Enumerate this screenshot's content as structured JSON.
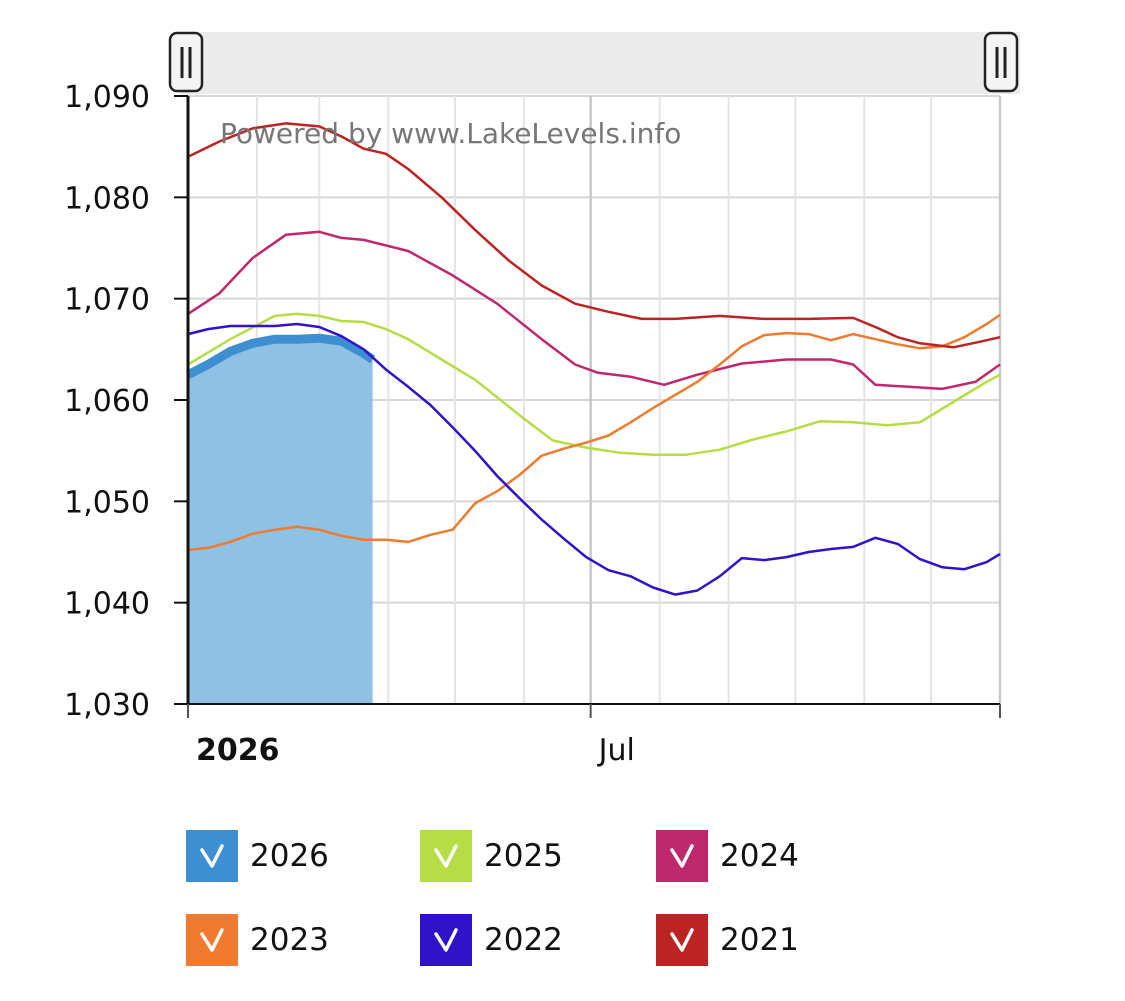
{
  "watermark": "Powered by www.LakeLevels.info",
  "chart_data": {
    "type": "line",
    "y_ticks": [
      "1,030",
      "1,040",
      "1,050",
      "1,060",
      "1,070",
      "1,080",
      "1,090"
    ],
    "ylim": [
      1030,
      1090
    ],
    "x_ticks": [
      {
        "label": "2026",
        "bold": true,
        "x": 1
      },
      {
        "label": "Jul",
        "bold": false,
        "x": 182
      }
    ],
    "xlim": [
      1,
      366
    ],
    "grid": true,
    "legend_position": "bottom",
    "series": [
      {
        "name": "2026",
        "color": "#3d8fd1",
        "style": "area",
        "x": [
          1,
          10,
          20,
          30,
          40,
          50,
          60,
          70,
          75,
          80,
          84
        ],
        "y": [
          1062.5,
          1063.5,
          1064.8,
          1065.6,
          1066,
          1066,
          1066.1,
          1065.8,
          1065.2,
          1064.6,
          1064
        ]
      },
      {
        "name": "2025",
        "color": "#b5dd45",
        "style": "line",
        "x": [
          1,
          20,
          40,
          50,
          60,
          70,
          80,
          90,
          100,
          115,
          130,
          150,
          165,
          180,
          195,
          210,
          225,
          240,
          255,
          270,
          285,
          300,
          315,
          330,
          345,
          360,
          366
        ],
        "y": [
          1063.5,
          1066,
          1068.3,
          1068.5,
          1068.3,
          1067.8,
          1067.7,
          1067,
          1066,
          1064,
          1062,
          1058.5,
          1056,
          1055.3,
          1054.8,
          1054.6,
          1054.6,
          1055.1,
          1056.1,
          1056.9,
          1057.9,
          1057.8,
          1057.5,
          1057.8,
          1059.8,
          1061.8,
          1062.5
        ]
      },
      {
        "name": "2024",
        "color": "#c0286e",
        "style": "line",
        "x": [
          1,
          15,
          30,
          45,
          60,
          70,
          80,
          100,
          120,
          140,
          160,
          175,
          185,
          200,
          215,
          230,
          250,
          270,
          290,
          300,
          310,
          325,
          340,
          355,
          366
        ],
        "y": [
          1068.5,
          1070.5,
          1074,
          1076.3,
          1076.6,
          1076,
          1075.8,
          1074.7,
          1072.3,
          1069.5,
          1066,
          1063.5,
          1062.7,
          1062.3,
          1061.5,
          1062.5,
          1063.6,
          1064,
          1064,
          1063.5,
          1061.5,
          1061.3,
          1061.1,
          1061.8,
          1063.5
        ]
      },
      {
        "name": "2023",
        "color": "#f07a2d",
        "style": "line",
        "x": [
          1,
          10,
          20,
          30,
          40,
          50,
          60,
          70,
          80,
          90,
          100,
          110,
          120,
          130,
          140,
          150,
          160,
          170,
          180,
          190,
          200,
          210,
          220,
          230,
          240,
          250,
          260,
          270,
          280,
          290,
          300,
          310,
          320,
          330,
          340,
          350,
          360,
          366
        ],
        "y": [
          1045.2,
          1045.4,
          1046,
          1046.8,
          1047.2,
          1047.5,
          1047.2,
          1046.6,
          1046.2,
          1046.2,
          1046,
          1046.7,
          1047.2,
          1049.8,
          1051,
          1052.6,
          1054.5,
          1055.2,
          1055.8,
          1056.5,
          1057.8,
          1059.2,
          1060.5,
          1061.8,
          1063.5,
          1065.3,
          1066.4,
          1066.6,
          1066.5,
          1065.9,
          1066.5,
          1066,
          1065.5,
          1065.1,
          1065.3,
          1066.2,
          1067.5,
          1068.4
        ]
      },
      {
        "name": "2022",
        "color": "#2f12c9",
        "style": "line",
        "x": [
          1,
          10,
          20,
          30,
          40,
          50,
          60,
          70,
          80,
          90,
          100,
          110,
          120,
          130,
          140,
          150,
          160,
          170,
          180,
          190,
          200,
          210,
          220,
          230,
          240,
          250,
          260,
          270,
          280,
          290,
          300,
          310,
          320,
          330,
          340,
          350,
          360,
          366
        ],
        "y": [
          1066.5,
          1067,
          1067.3,
          1067.3,
          1067.3,
          1067.5,
          1067.2,
          1066.3,
          1065,
          1063,
          1061.3,
          1059.5,
          1057.3,
          1055,
          1052.5,
          1050.3,
          1048.2,
          1046.3,
          1044.5,
          1043.2,
          1042.6,
          1041.5,
          1040.8,
          1041.2,
          1042.6,
          1044.4,
          1044.2,
          1044.5,
          1045,
          1045.3,
          1045.5,
          1046.4,
          1045.8,
          1044.3,
          1043.5,
          1043.3,
          1044,
          1044.8
        ]
      },
      {
        "name": "2021",
        "color": "#bb2422",
        "style": "line",
        "x": [
          1,
          15,
          30,
          45,
          60,
          70,
          80,
          90,
          100,
          115,
          130,
          145,
          160,
          175,
          190,
          205,
          220,
          240,
          260,
          280,
          300,
          310,
          320,
          330,
          345,
          356,
          366
        ],
        "y": [
          1084,
          1085.5,
          1086.8,
          1087.3,
          1087,
          1086,
          1084.8,
          1084.3,
          1082.8,
          1080,
          1076.8,
          1073.8,
          1071.3,
          1069.5,
          1068.7,
          1068,
          1068,
          1068.3,
          1068,
          1068,
          1068.1,
          1067.2,
          1066.2,
          1065.6,
          1065.2,
          1065.7,
          1066.2
        ]
      }
    ]
  },
  "legend": [
    {
      "label": "2026",
      "color": "#3d8fd1"
    },
    {
      "label": "2025",
      "color": "#b5dd45"
    },
    {
      "label": "2024",
      "color": "#c0286e"
    },
    {
      "label": "2023",
      "color": "#f07a2d"
    },
    {
      "label": "2022",
      "color": "#2f12c9"
    },
    {
      "label": "2021",
      "color": "#bb2422"
    }
  ]
}
